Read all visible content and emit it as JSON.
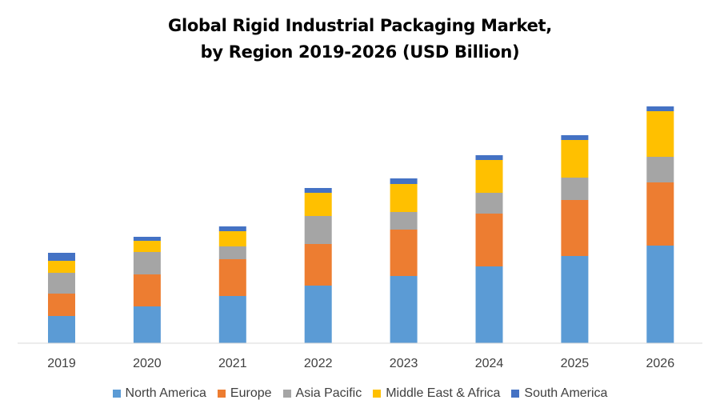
{
  "chart_data": {
    "type": "bar",
    "stacked": true,
    "title_lines": [
      "Global Rigid Industrial Packaging Market,",
      "by Region 2019-2026 (USD Billion)"
    ],
    "categories": [
      "2019",
      "2020",
      "2021",
      "2022",
      "2023",
      "2024",
      "2025",
      "2026"
    ],
    "series": [
      {
        "name": "North America",
        "color": "#5B9BD5",
        "values": [
          34,
          46,
          59,
          72,
          84,
          96,
          109,
          122
        ]
      },
      {
        "name": "Europe",
        "color": "#ED7D31",
        "values": [
          28,
          40,
          46,
          52,
          58,
          66,
          70,
          79
        ]
      },
      {
        "name": "Asia Pacific",
        "color": "#A5A5A5",
        "values": [
          26,
          28,
          16,
          35,
          22,
          26,
          28,
          32
        ]
      },
      {
        "name": "Middle East & Africa",
        "color": "#FFC000",
        "values": [
          15,
          14,
          19,
          29,
          35,
          41,
          47,
          57
        ]
      },
      {
        "name": "South America",
        "color": "#4472C4",
        "values": [
          10,
          5,
          6,
          6,
          7,
          6,
          6,
          6
        ]
      }
    ],
    "ylim": [
      0,
      300
    ],
    "grid": false,
    "legend_position": "bottom"
  }
}
